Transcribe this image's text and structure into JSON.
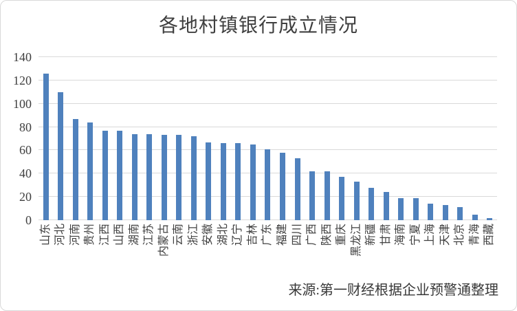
{
  "title": "各地村镇银行成立情况",
  "source": "来源:第一财经根据企业预警通整理",
  "colors": {
    "bar": "#4f81bd",
    "gridline": "#d9d9d9",
    "title_text": "#3f3f3f",
    "axis_text": "#3f3f3f",
    "source_text": "#383838",
    "frame_border": "#d8d8d8",
    "background": "#ffffff"
  },
  "chart_data": {
    "type": "bar",
    "title": "各地村镇银行成立情况",
    "categories": [
      "山东",
      "河北",
      "河南",
      "贵州",
      "江西",
      "山西",
      "湖南",
      "江苏",
      "内蒙古",
      "云南",
      "浙江",
      "安徽",
      "湖北",
      "辽宁",
      "吉林",
      "广东",
      "福建",
      "四川",
      "广西",
      "陕西",
      "重庆",
      "黑龙江",
      "新疆",
      "甘肃",
      "海南",
      "宁夏",
      "上海",
      "天津",
      "北京",
      "青海",
      "西藏"
    ],
    "values": [
      126,
      110,
      87,
      84,
      77,
      77,
      74,
      74,
      73,
      73,
      72,
      67,
      66,
      66,
      65,
      61,
      58,
      53,
      42,
      42,
      37,
      33,
      28,
      24,
      19,
      19,
      14,
      13,
      11,
      5,
      2
    ],
    "xlabel": "",
    "ylabel": "",
    "ylim": [
      0,
      140
    ],
    "yticks": [
      0,
      20,
      40,
      60,
      80,
      100,
      120,
      140
    ],
    "grid": true,
    "legend": false,
    "bar_color": "#4f81bd",
    "x_label_rotation": -90,
    "source": "来源:第一财经根据企业预警通整理"
  }
}
